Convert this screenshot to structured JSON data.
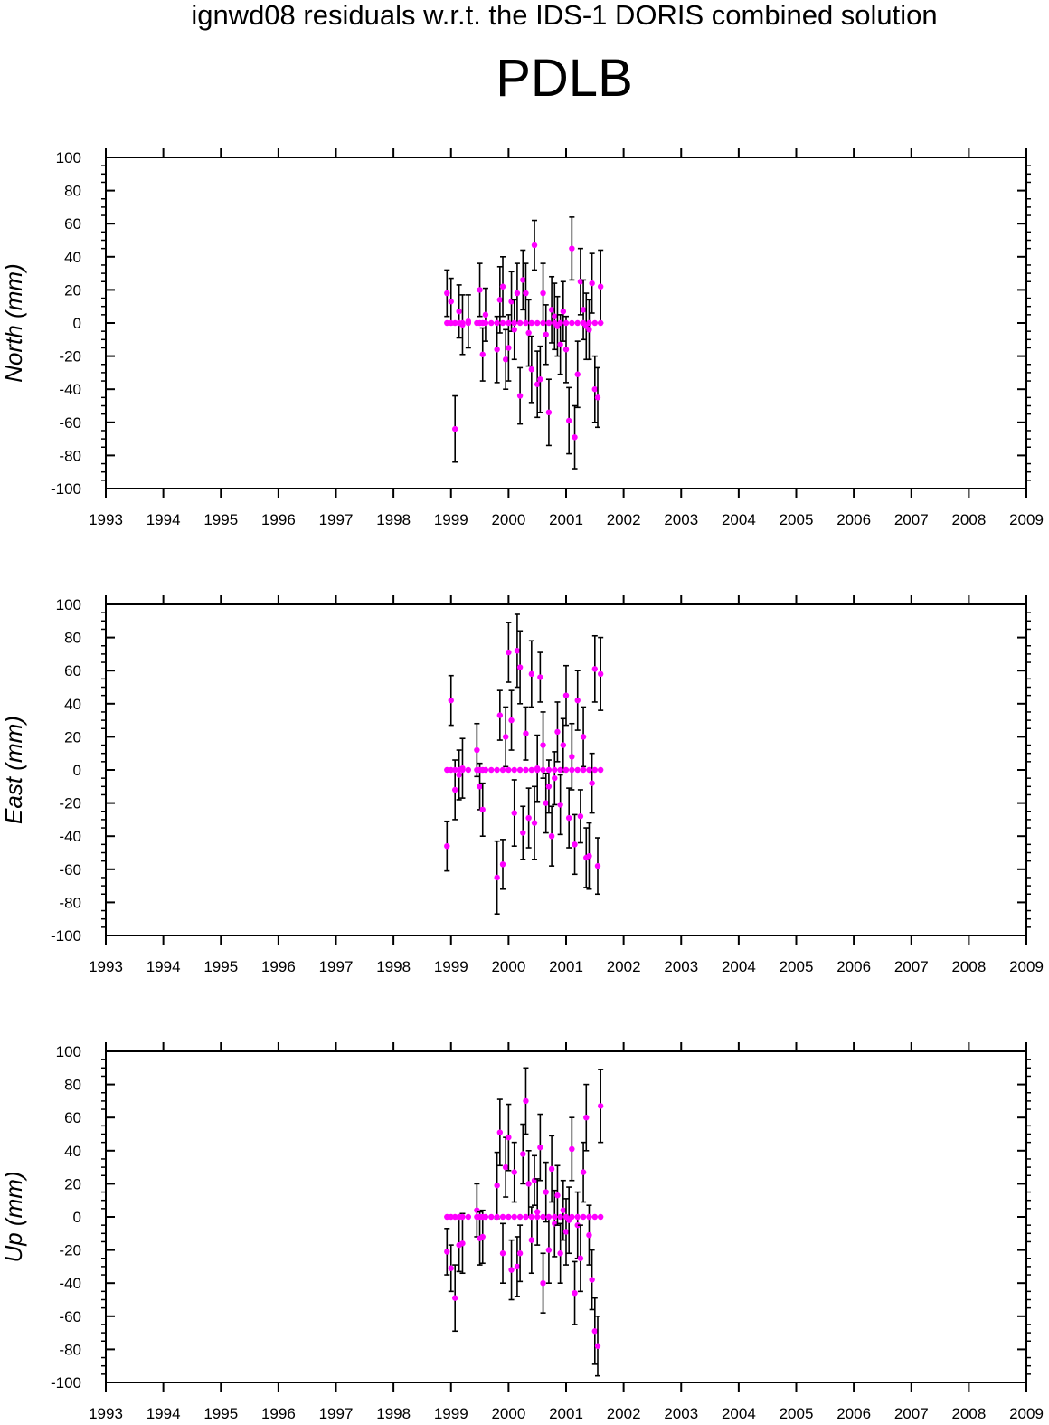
{
  "header": {
    "title": "ignwd08 residuals w.r.t. the IDS-1 DORIS combined solution",
    "subtitle": "PDLB"
  },
  "colors": {
    "marker": "#ff00ff",
    "error_bar": "#000000",
    "axes": "#000000",
    "background": "#ffffff"
  },
  "chart_data": [
    {
      "type": "scatter",
      "title": "",
      "xlabel": "",
      "ylabel": "North (mm)",
      "xlim": [
        1993,
        2009
      ],
      "ylim": [
        -100,
        100
      ],
      "xticks": [
        "1993",
        "1994",
        "1995",
        "1996",
        "1997",
        "1998",
        "1999",
        "2000",
        "2001",
        "2002",
        "2003",
        "2004",
        "2005",
        "2006",
        "2007",
        "2008",
        "2009"
      ],
      "yticks": [
        "100",
        "80",
        "60",
        "40",
        "20",
        "0",
        "-20",
        "-40",
        "-60",
        "-80",
        "-100"
      ],
      "grid": false,
      "error_bars": true,
      "series": [
        {
          "x": [
            1998.93,
            1999.0,
            1999.07,
            1999.14,
            1999.2,
            1999.3,
            1999.5,
            1999.55,
            1999.6,
            1999.8,
            1999.85,
            1999.9,
            1999.95,
            2000.0,
            2000.05,
            2000.1,
            2000.15,
            2000.2,
            2000.25,
            2000.3,
            2000.35,
            2000.4,
            2000.45,
            2000.5,
            2000.55,
            2000.6,
            2000.65,
            2000.7,
            2000.75,
            2000.8,
            2000.85,
            2000.9,
            2000.95,
            2001.0,
            2001.05,
            2001.1,
            2001.15,
            2001.2,
            2001.25,
            2001.3,
            2001.35,
            2001.4,
            2001.45,
            2001.5,
            2001.55,
            2001.6
          ],
          "y": [
            18,
            13,
            -64,
            7,
            -1,
            1,
            20,
            -19,
            5,
            -16,
            14,
            22,
            -22,
            -15,
            13,
            -4,
            18,
            -44,
            26,
            18,
            -6,
            -28,
            47,
            -37,
            -34,
            18,
            -7,
            -54,
            8,
            4,
            -2,
            -13,
            7,
            -16,
            -59,
            45,
            -69,
            -31,
            25,
            8,
            -2,
            -4,
            24,
            -40,
            -45,
            22
          ],
          "err": [
            14,
            14,
            20,
            16,
            18,
            16,
            16,
            16,
            16,
            20,
            20,
            18,
            18,
            20,
            18,
            18,
            18,
            17,
            18,
            18,
            20,
            20,
            15,
            20,
            20,
            18,
            18,
            20,
            20,
            20,
            18,
            18,
            18,
            20,
            20,
            19,
            19,
            20,
            20,
            18,
            20,
            18,
            18,
            20,
            18,
            22
          ]
        },
        {
          "name_hidden": "",
          "x": [
            1998.93,
            1999.0,
            1999.07,
            1999.14,
            1999.2,
            1999.3,
            1999.45,
            1999.5,
            1999.55,
            1999.6,
            1999.7,
            1999.8,
            1999.9,
            2000.0,
            2000.1,
            2000.2,
            2000.3,
            2000.4,
            2000.5,
            2000.6,
            2000.7,
            2000.8,
            2000.9,
            2001.0,
            2001.1,
            2001.2,
            2001.3,
            2001.4,
            2001.5,
            2001.6
          ],
          "y": [
            0,
            0,
            0,
            0,
            0,
            0,
            0,
            0,
            0,
            0,
            0,
            0,
            0,
            0,
            0,
            0,
            0,
            0,
            0,
            0,
            0,
            0,
            0,
            0,
            0,
            0,
            0,
            0,
            0,
            0
          ],
          "err": [
            0,
            0,
            0,
            0,
            0,
            0,
            0,
            0,
            0,
            0,
            0,
            0,
            0,
            0,
            0,
            0,
            0,
            0,
            0,
            0,
            0,
            0,
            0,
            0,
            0,
            0,
            0,
            0,
            0,
            0
          ]
        }
      ]
    },
    {
      "type": "scatter",
      "title": "",
      "xlabel": "",
      "ylabel": "East (mm)",
      "xlim": [
        1993,
        2009
      ],
      "ylim": [
        -100,
        100
      ],
      "xticks": [
        "1993",
        "1994",
        "1995",
        "1996",
        "1997",
        "1998",
        "1999",
        "2000",
        "2001",
        "2002",
        "2003",
        "2004",
        "2005",
        "2006",
        "2007",
        "2008",
        "2009"
      ],
      "yticks": [
        "100",
        "80",
        "60",
        "40",
        "20",
        "0",
        "-20",
        "-40",
        "-60",
        "-80",
        "-100"
      ],
      "grid": false,
      "error_bars": true,
      "series": [
        {
          "x": [
            1998.93,
            1999.0,
            1999.07,
            1999.14,
            1999.2,
            1999.45,
            1999.5,
            1999.55,
            1999.8,
            1999.85,
            1999.9,
            1999.95,
            2000.0,
            2000.05,
            2000.1,
            2000.15,
            2000.2,
            2000.25,
            2000.3,
            2000.35,
            2000.4,
            2000.45,
            2000.5,
            2000.55,
            2000.6,
            2000.65,
            2000.7,
            2000.75,
            2000.8,
            2000.85,
            2000.9,
            2000.95,
            2001.0,
            2001.05,
            2001.1,
            2001.15,
            2001.2,
            2001.25,
            2001.3,
            2001.35,
            2001.4,
            2001.45,
            2001.5,
            2001.55,
            2001.6
          ],
          "y": [
            -46,
            42,
            -12,
            -3,
            1,
            12,
            -10,
            -24,
            -65,
            33,
            -57,
            20,
            71,
            30,
            -26,
            72,
            62,
            -38,
            22,
            -29,
            58,
            -32,
            1,
            56,
            15,
            -20,
            -10,
            -40,
            -5,
            23,
            -21,
            15,
            45,
            -29,
            8,
            -45,
            42,
            -28,
            20,
            -53,
            -52,
            -8,
            61,
            -58,
            58
          ],
          "err": [
            15,
            15,
            18,
            15,
            18,
            16,
            14,
            16,
            22,
            15,
            15,
            18,
            18,
            18,
            20,
            22,
            22,
            16,
            16,
            18,
            20,
            22,
            20,
            15,
            20,
            18,
            16,
            18,
            16,
            18,
            18,
            16,
            18,
            18,
            20,
            18,
            18,
            16,
            18,
            18,
            20,
            18,
            20,
            17,
            22
          ]
        },
        {
          "x": [
            1998.93,
            1999.0,
            1999.07,
            1999.14,
            1999.2,
            1999.3,
            1999.45,
            1999.5,
            1999.55,
            1999.6,
            1999.7,
            1999.8,
            1999.9,
            2000.0,
            2000.1,
            2000.2,
            2000.3,
            2000.4,
            2000.5,
            2000.6,
            2000.7,
            2000.8,
            2000.9,
            2001.0,
            2001.1,
            2001.2,
            2001.3,
            2001.4,
            2001.5,
            2001.6
          ],
          "y": [
            0,
            0,
            0,
            0,
            0,
            0,
            0,
            0,
            0,
            0,
            0,
            0,
            0,
            0,
            0,
            0,
            0,
            0,
            0,
            0,
            0,
            0,
            0,
            0,
            0,
            0,
            0,
            0,
            0,
            0
          ],
          "err": [
            0,
            0,
            0,
            0,
            0,
            0,
            0,
            0,
            0,
            0,
            0,
            0,
            0,
            0,
            0,
            0,
            0,
            0,
            0,
            0,
            0,
            0,
            0,
            0,
            0,
            0,
            0,
            0,
            0,
            0
          ]
        }
      ]
    },
    {
      "type": "scatter",
      "title": "",
      "xlabel": "",
      "ylabel": "Up (mm)",
      "xlim": [
        1993,
        2009
      ],
      "ylim": [
        -100,
        100
      ],
      "xticks": [
        "1993",
        "1994",
        "1995",
        "1996",
        "1997",
        "1998",
        "1999",
        "2000",
        "2001",
        "2002",
        "2003",
        "2004",
        "2005",
        "2006",
        "2007",
        "2008",
        "2009"
      ],
      "yticks": [
        "100",
        "80",
        "60",
        "40",
        "20",
        "0",
        "-20",
        "-40",
        "-60",
        "-80",
        "-100"
      ],
      "grid": false,
      "error_bars": true,
      "series": [
        {
          "x": [
            1998.93,
            1999.0,
            1999.07,
            1999.14,
            1999.2,
            1999.45,
            1999.5,
            1999.55,
            1999.8,
            1999.85,
            1999.9,
            1999.95,
            2000.0,
            2000.05,
            2000.1,
            2000.15,
            2000.2,
            2000.25,
            2000.3,
            2000.35,
            2000.4,
            2000.45,
            2000.5,
            2000.55,
            2000.6,
            2000.65,
            2000.7,
            2000.75,
            2000.8,
            2000.85,
            2000.9,
            2000.95,
            2001.0,
            2001.05,
            2001.1,
            2001.15,
            2001.2,
            2001.25,
            2001.3,
            2001.35,
            2001.4,
            2001.45,
            2001.5,
            2001.55,
            2001.6
          ],
          "y": [
            -21,
            -31,
            -49,
            -17,
            -16,
            4,
            -13,
            -12,
            19,
            51,
            -22,
            30,
            48,
            -32,
            27,
            -30,
            -22,
            38,
            70,
            20,
            -14,
            22,
            3,
            42,
            -40,
            15,
            -20,
            29,
            -4,
            13,
            -22,
            4,
            -9,
            -2,
            41,
            -46,
            -5,
            -25,
            27,
            60,
            -11,
            -38,
            -69,
            -78,
            67
          ],
          "err": [
            14,
            14,
            20,
            16,
            18,
            16,
            16,
            16,
            20,
            20,
            18,
            18,
            20,
            18,
            18,
            18,
            17,
            18,
            20,
            20,
            20,
            15,
            20,
            20,
            18,
            18,
            20,
            20,
            20,
            18,
            18,
            18,
            20,
            20,
            19,
            19,
            20,
            20,
            18,
            20,
            18,
            18,
            20,
            18,
            22
          ]
        },
        {
          "x": [
            1998.93,
            1999.0,
            1999.07,
            1999.14,
            1999.2,
            1999.3,
            1999.45,
            1999.5,
            1999.55,
            1999.6,
            1999.7,
            1999.8,
            1999.9,
            2000.0,
            2000.1,
            2000.2,
            2000.3,
            2000.4,
            2000.5,
            2000.6,
            2000.7,
            2000.8,
            2000.9,
            2001.0,
            2001.1,
            2001.2,
            2001.3,
            2001.4,
            2001.5,
            2001.6
          ],
          "y": [
            0,
            0,
            0,
            0,
            0,
            0,
            0,
            0,
            0,
            0,
            0,
            0,
            0,
            0,
            0,
            0,
            0,
            0,
            0,
            0,
            0,
            0,
            0,
            0,
            0,
            0,
            0,
            0,
            0,
            0
          ],
          "err": [
            0,
            0,
            0,
            0,
            0,
            0,
            0,
            0,
            0,
            0,
            0,
            0,
            0,
            0,
            0,
            0,
            0,
            0,
            0,
            0,
            0,
            0,
            0,
            0,
            0,
            0,
            0,
            0,
            0,
            0
          ]
        }
      ]
    }
  ]
}
